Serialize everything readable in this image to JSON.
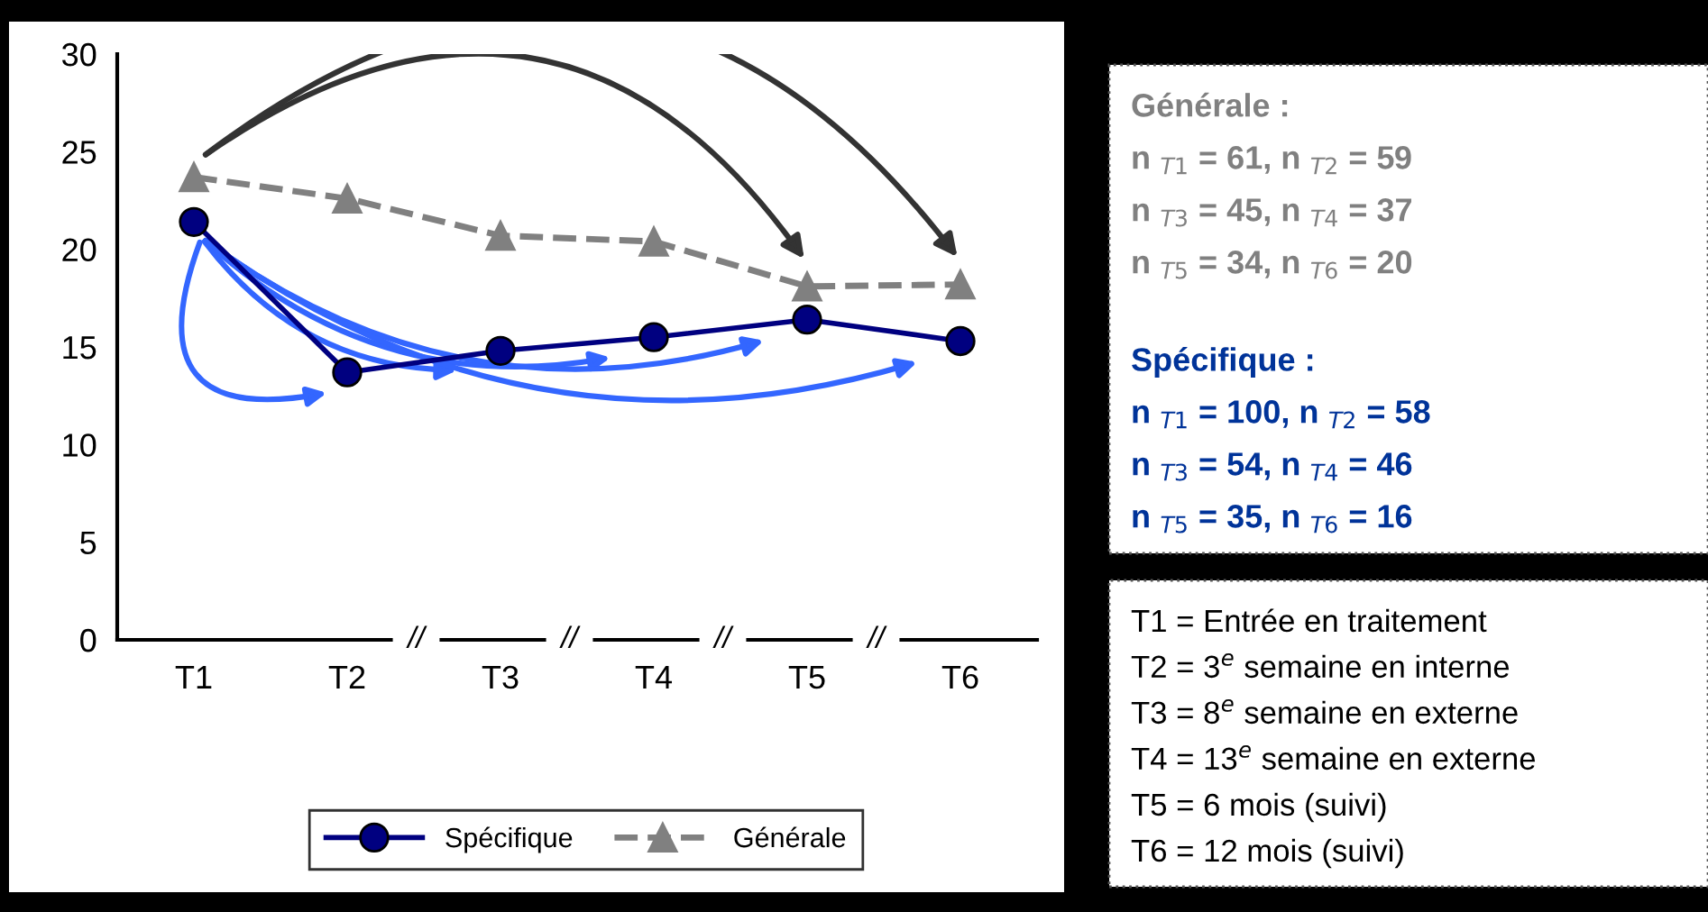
{
  "chart_data": {
    "type": "line",
    "categories": [
      "T1",
      "T2",
      "T3",
      "T4",
      "T5",
      "T6"
    ],
    "series": [
      {
        "name": "Spécifique",
        "color": "#000080",
        "marker": "circle",
        "line_style": "solid",
        "values": [
          21.4,
          13.7,
          14.8,
          15.5,
          16.4,
          15.3
        ]
      },
      {
        "name": "Générale",
        "color": "#808080",
        "marker": "triangle",
        "line_style": "dashed",
        "values": [
          23.7,
          22.6,
          20.7,
          20.4,
          18.1,
          18.2
        ]
      }
    ],
    "ylim": [
      0,
      30
    ],
    "yticks": [
      0,
      5,
      10,
      15,
      20,
      25,
      30
    ],
    "grid": false,
    "legend": "bottom",
    "annotations": [
      "Générale :",
      "n $_{T1}$ = 61, n $_{T2}$ = 59",
      "n $_{T3}$ = 45, n $_{T4}$ = 37",
      "n $_{T5}$ = 34, n $_{T6}$ = 20",
      "Spécifique :",
      "n $_{T1}$ = 100, n $_{T2}$ = 58",
      "n $_{T3}$ = 54, n $_{T4}$ = 46",
      "n $_{T5}$ = 35, n $_{T6}$ = 16",
      "T1 = Entrée en traitement",
      "T2 = 3$^{e}$ semaine en interne",
      "T3 = 8$^{e}$ semaine en externe",
      "T4 = 13$^{e}$ semaine en externe",
      "T5 = 6 mois (suivi)",
      "T6 = 12 mois (suivi)",
      "//",
      "//",
      "//",
      "//"
    ]
  }
}
